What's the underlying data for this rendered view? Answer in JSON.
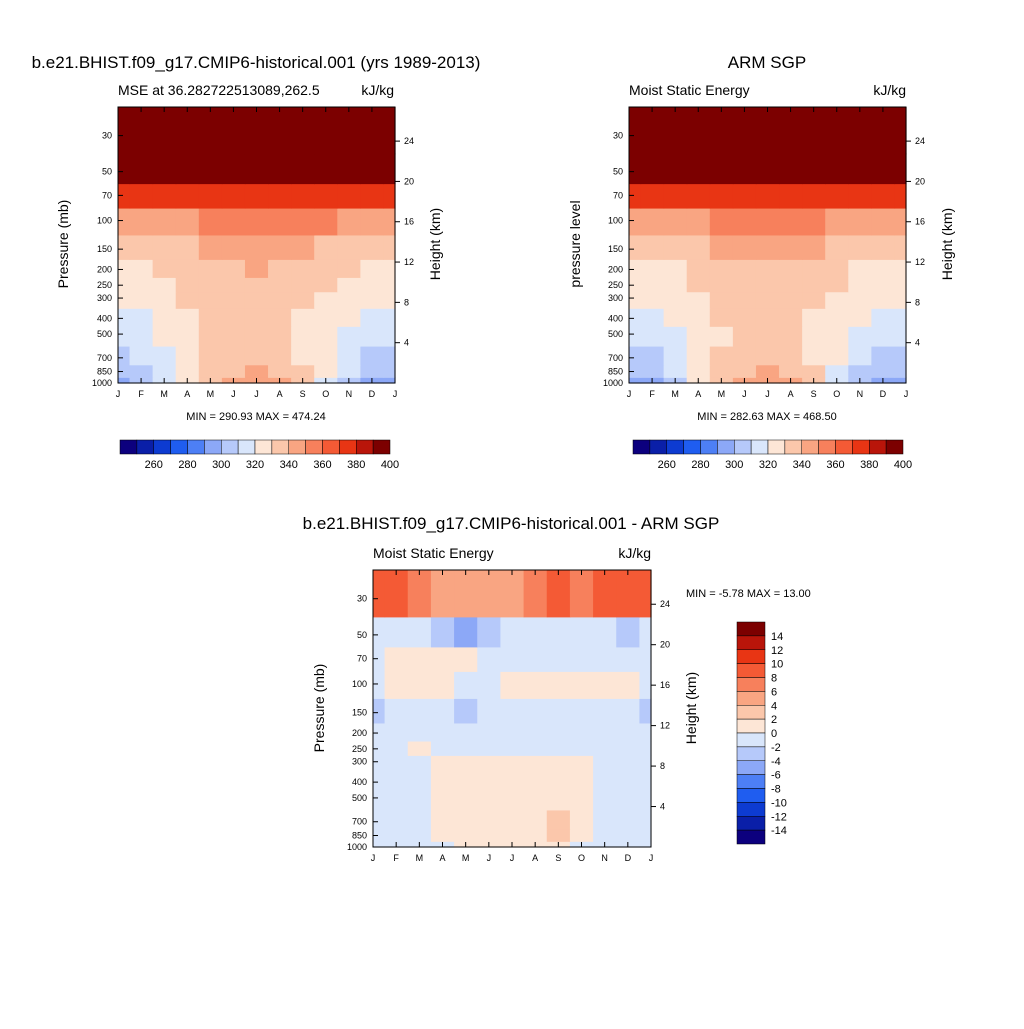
{
  "figure": {
    "main_title_left": "b.e21.BHIST.f09_g17.CMIP6-historical.001 (yrs 1989-2013)",
    "main_title_right": "ARM SGP",
    "main_title_diff": "b.e21.BHIST.f09_g17.CMIP6-historical.001 - ARM SGP"
  },
  "chart_data": [
    {
      "id": "model",
      "type": "heatmap",
      "title": "b.e21.BHIST.f09_g17.CMIP6-historical.001 (yrs 1989-2013)",
      "subtitle_left": "MSE at 36.282722513089,262.5",
      "subtitle_right": "kJ/kg",
      "xlabel": "",
      "ylabel": "Pressure (mb)",
      "ylabel_right": "Height (km)",
      "x_ticks": [
        "J",
        "F",
        "M",
        "A",
        "M",
        "J",
        "J",
        "A",
        "S",
        "O",
        "N",
        "D",
        "J"
      ],
      "y_ticks": [
        30,
        50,
        70,
        100,
        150,
        200,
        250,
        300,
        400,
        500,
        700,
        850,
        1000
      ],
      "y_ticks_right": [
        4,
        8,
        12,
        16,
        20,
        24
      ],
      "ylim": [
        1000,
        20
      ],
      "stats": "MIN = 290.93 MAX = 474.24",
      "colorbar_labels": [
        "260",
        "280",
        "300",
        "320",
        "340",
        "360",
        "380",
        "400"
      ],
      "levels": [
        250,
        260,
        270,
        280,
        290,
        300,
        310,
        320,
        330,
        340,
        350,
        360,
        370,
        380,
        390,
        400
      ],
      "months": [
        1,
        2,
        3,
        4,
        5,
        6,
        7,
        8,
        9,
        10,
        11,
        12,
        13
      ],
      "pressure_levels": [
        1000,
        850,
        700,
        500,
        400,
        300,
        250,
        200,
        150,
        100,
        70,
        50,
        30
      ],
      "values": [
        [
          298,
          300,
          310,
          322,
          333,
          342,
          345,
          342,
          332,
          318,
          305,
          298,
          298
        ],
        [
          304,
          306,
          314,
          324,
          333,
          339,
          341,
          339,
          332,
          322,
          310,
          304,
          304
        ],
        [
          308,
          310,
          316,
          324,
          331,
          335,
          336,
          335,
          329,
          322,
          313,
          308,
          308
        ],
        [
          314,
          315,
          320,
          326,
          330,
          332,
          332,
          331,
          328,
          324,
          318,
          314,
          314
        ],
        [
          318,
          319,
          323,
          328,
          331,
          332,
          332,
          332,
          329,
          326,
          321,
          318,
          318
        ],
        [
          322,
          323,
          326,
          330,
          333,
          336,
          336,
          335,
          332,
          329,
          325,
          322,
          322
        ],
        [
          325,
          326,
          328,
          331,
          334,
          337,
          338,
          337,
          334,
          331,
          328,
          325,
          325
        ],
        [
          328,
          328,
          330,
          332,
          336,
          339,
          340,
          339,
          336,
          333,
          330,
          328,
          328
        ],
        [
          336,
          336,
          337,
          338,
          341,
          344,
          345,
          344,
          341,
          339,
          337,
          336,
          336
        ],
        [
          348,
          348,
          348,
          349,
          351,
          354,
          355,
          354,
          352,
          350,
          349,
          348,
          348
        ],
        [
          372,
          372,
          372,
          372,
          373,
          375,
          376,
          375,
          374,
          373,
          372,
          372,
          372
        ],
        [
          412,
          412,
          412,
          412,
          412,
          412,
          412,
          412,
          412,
          412,
          412,
          412,
          412
        ],
        [
          460,
          460,
          460,
          460,
          460,
          460,
          460,
          460,
          460,
          460,
          460,
          460,
          460
        ]
      ]
    },
    {
      "id": "obs",
      "type": "heatmap",
      "title": "ARM SGP",
      "subtitle_left": "Moist Static Energy",
      "subtitle_right": "kJ/kg",
      "xlabel": "",
      "ylabel": "pressure level",
      "ylabel_right": "Height (km)",
      "x_ticks": [
        "J",
        "F",
        "M",
        "A",
        "M",
        "J",
        "J",
        "A",
        "S",
        "O",
        "N",
        "D",
        "J"
      ],
      "y_ticks": [
        30,
        50,
        70,
        100,
        150,
        200,
        250,
        300,
        400,
        500,
        700,
        850,
        1000
      ],
      "y_ticks_right": [
        4,
        8,
        12,
        16,
        20,
        24
      ],
      "ylim": [
        1000,
        20
      ],
      "stats": "MIN = 282.63 MAX = 468.50",
      "colorbar_labels": [
        "260",
        "280",
        "300",
        "320",
        "340",
        "360",
        "380",
        "400"
      ],
      "levels": [
        250,
        260,
        270,
        280,
        290,
        300,
        310,
        320,
        330,
        340,
        350,
        360,
        370,
        380,
        390,
        400
      ],
      "months": [
        1,
        2,
        3,
        4,
        5,
        6,
        7,
        8,
        9,
        10,
        11,
        12,
        13
      ],
      "pressure_levels": [
        1000,
        850,
        700,
        500,
        400,
        300,
        250,
        200,
        150,
        100,
        70,
        50,
        30
      ],
      "values": [
        [
          292,
          296,
          308,
          320,
          332,
          340,
          343,
          340,
          330,
          315,
          300,
          292,
          292
        ],
        [
          300,
          302,
          312,
          322,
          332,
          338,
          340,
          338,
          330,
          318,
          306,
          300,
          300
        ],
        [
          306,
          308,
          315,
          323,
          330,
          334,
          335,
          334,
          328,
          320,
          311,
          306,
          306
        ],
        [
          313,
          314,
          319,
          325,
          329,
          331,
          331,
          330,
          327,
          323,
          317,
          313,
          313
        ],
        [
          318,
          318,
          322,
          327,
          330,
          331,
          331,
          331,
          328,
          325,
          320,
          318,
          318
        ],
        [
          322,
          322,
          325,
          329,
          332,
          334,
          335,
          334,
          331,
          328,
          324,
          322,
          322
        ],
        [
          325,
          325,
          327,
          330,
          333,
          336,
          337,
          336,
          333,
          330,
          327,
          325,
          325
        ],
        [
          328,
          328,
          329,
          331,
          334,
          338,
          339,
          338,
          335,
          332,
          329,
          328,
          328
        ],
        [
          335,
          335,
          336,
          337,
          340,
          343,
          344,
          343,
          340,
          338,
          336,
          335,
          335
        ],
        [
          347,
          347,
          347,
          348,
          350,
          353,
          354,
          353,
          351,
          349,
          348,
          347,
          347
        ],
        [
          371,
          371,
          371,
          371,
          372,
          374,
          375,
          374,
          373,
          372,
          371,
          371,
          371
        ],
        [
          410,
          410,
          410,
          410,
          410,
          410,
          410,
          410,
          410,
          410,
          410,
          410,
          410
        ],
        [
          455,
          455,
          455,
          455,
          455,
          455,
          455,
          455,
          455,
          455,
          455,
          455,
          455
        ]
      ]
    },
    {
      "id": "diff",
      "type": "heatmap",
      "title": "b.e21.BHIST.f09_g17.CMIP6-historical.001 - ARM SGP",
      "subtitle_left": "Moist Static Energy",
      "subtitle_right": "kJ/kg",
      "xlabel": "",
      "ylabel": "Pressure (mb)",
      "ylabel_right": "Height (km)",
      "x_ticks": [
        "J",
        "F",
        "M",
        "A",
        "M",
        "J",
        "J",
        "A",
        "S",
        "O",
        "N",
        "D",
        "J"
      ],
      "y_ticks": [
        30,
        50,
        70,
        100,
        150,
        200,
        250,
        300,
        400,
        500,
        700,
        850,
        1000
      ],
      "y_ticks_right": [
        4,
        8,
        12,
        16,
        20,
        24
      ],
      "ylim": [
        1000,
        20
      ],
      "stats": "MIN =  -5.78 MAX =  13.00",
      "colorbar_labels": [
        "14",
        "12",
        "10",
        "8",
        "6",
        "4",
        "2",
        "0",
        "-2",
        "-4",
        "-6",
        "-8",
        "-10",
        "-12",
        "-14"
      ],
      "levels": [
        -14,
        -12,
        -10,
        -8,
        -6,
        -4,
        -2,
        0,
        2,
        4,
        6,
        8,
        10,
        12,
        14
      ],
      "months": [
        1,
        2,
        3,
        4,
        5,
        6,
        7,
        8,
        9,
        10,
        11,
        12,
        13
      ],
      "pressure_levels": [
        1000,
        850,
        700,
        500,
        400,
        300,
        250,
        200,
        150,
        100,
        70,
        50,
        30
      ],
      "values": [
        [
          -1.0,
          -1.0,
          -1.0,
          -1.0,
          0.5,
          0.5,
          0.5,
          0.5,
          0.5,
          -1.0,
          -1.0,
          -1.0,
          -1.0
        ],
        [
          -1.0,
          -1.0,
          -1.0,
          0.5,
          0.8,
          1.0,
          1.0,
          1.5,
          3.0,
          0.5,
          -1.0,
          -1.0,
          -1.0
        ],
        [
          -1.0,
          -1.0,
          -1.0,
          0.5,
          1.5,
          1.0,
          1.0,
          1.0,
          2.0,
          0.5,
          -1.0,
          -1.0,
          -1.0
        ],
        [
          -1.0,
          -1.0,
          -1.0,
          0.5,
          1.0,
          1.0,
          1.0,
          1.0,
          1.5,
          0.5,
          -1.0,
          -1.0,
          -1.0
        ],
        [
          -1.0,
          -1.0,
          -1.0,
          0.5,
          1.0,
          1.0,
          1.0,
          1.0,
          1.0,
          0.5,
          -1.0,
          -1.0,
          -1.0
        ],
        [
          -1.0,
          -1.0,
          -1.0,
          0.5,
          0.5,
          0.5,
          0.5,
          0.5,
          0.5,
          0.5,
          -1.0,
          -1.0,
          -1.0
        ],
        [
          -1.0,
          -1.0,
          0.5,
          -1.0,
          -1.0,
          -1.0,
          -1.0,
          -1.0,
          -1.0,
          -1.0,
          -1.0,
          -1.0,
          -1.0
        ],
        [
          -1.0,
          -1.0,
          -1.0,
          -1.0,
          -1.0,
          -1.0,
          -1.0,
          -1.0,
          -1.0,
          -1.0,
          -1.0,
          -1.0,
          -1.0
        ],
        [
          -2.5,
          -1.0,
          -1.0,
          -1.0,
          -2.5,
          -1.0,
          -1.0,
          -1.0,
          -1.0,
          -1.0,
          -1.0,
          -1.0,
          -2.5
        ],
        [
          -1.0,
          0.5,
          0.5,
          0.5,
          -1.0,
          -1.0,
          0.5,
          0.5,
          0.5,
          0.5,
          0.5,
          0.5,
          -1.0
        ],
        [
          -1.0,
          0.5,
          0.5,
          0.5,
          0.5,
          -1.0,
          -1.0,
          -1.0,
          -1.0,
          -1.0,
          -1.0,
          -1.0,
          -1.0
        ],
        [
          -1.0,
          -1.0,
          -1.0,
          -2.5,
          -4.5,
          -3.0,
          -1.0,
          -1.0,
          -1.0,
          -1.0,
          -1.0,
          -2.5,
          -1.0
        ],
        [
          9.0,
          9.5,
          6.5,
          5.0,
          4.0,
          4.0,
          5.0,
          7.0,
          9.0,
          7.0,
          9.0,
          9.0,
          9.5
        ]
      ]
    }
  ]
}
